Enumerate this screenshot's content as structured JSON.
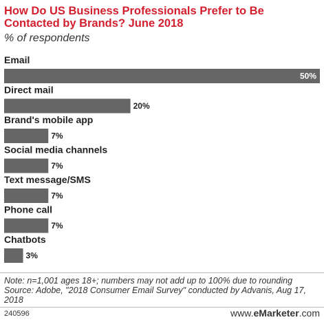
{
  "title": "How Do US Business Professionals Prefer to Be Contacted by Brands? June 2018",
  "subtitle": "% of respondents",
  "colors": {
    "title": "#d3202f",
    "bar": "#666666",
    "text": "#222222"
  },
  "chart_data": {
    "type": "bar",
    "orientation": "horizontal",
    "categories": [
      "Email",
      "Direct mail",
      "Brand's mobile app",
      "Social media channels",
      "Text message/SMS",
      "Phone call",
      "Chatbots"
    ],
    "values": [
      50,
      20,
      7,
      7,
      7,
      7,
      3
    ],
    "value_labels": [
      "50%",
      "20%",
      "7%",
      "7%",
      "7%",
      "7%",
      "3%"
    ],
    "xlim": [
      0,
      50
    ],
    "grid": false,
    "legend": "none"
  },
  "note": "Note: n=1,001 ages 18+; numbers may not add up to 100% due to rounding Source: Adobe, \"2018 Consumer Email Survey\" conducted by Advanis, Aug 17, 2018",
  "footer": {
    "chart_id": "240596",
    "brand_prefix": "www.",
    "brand_name": "eMarketer",
    "brand_suffix": ".com"
  }
}
